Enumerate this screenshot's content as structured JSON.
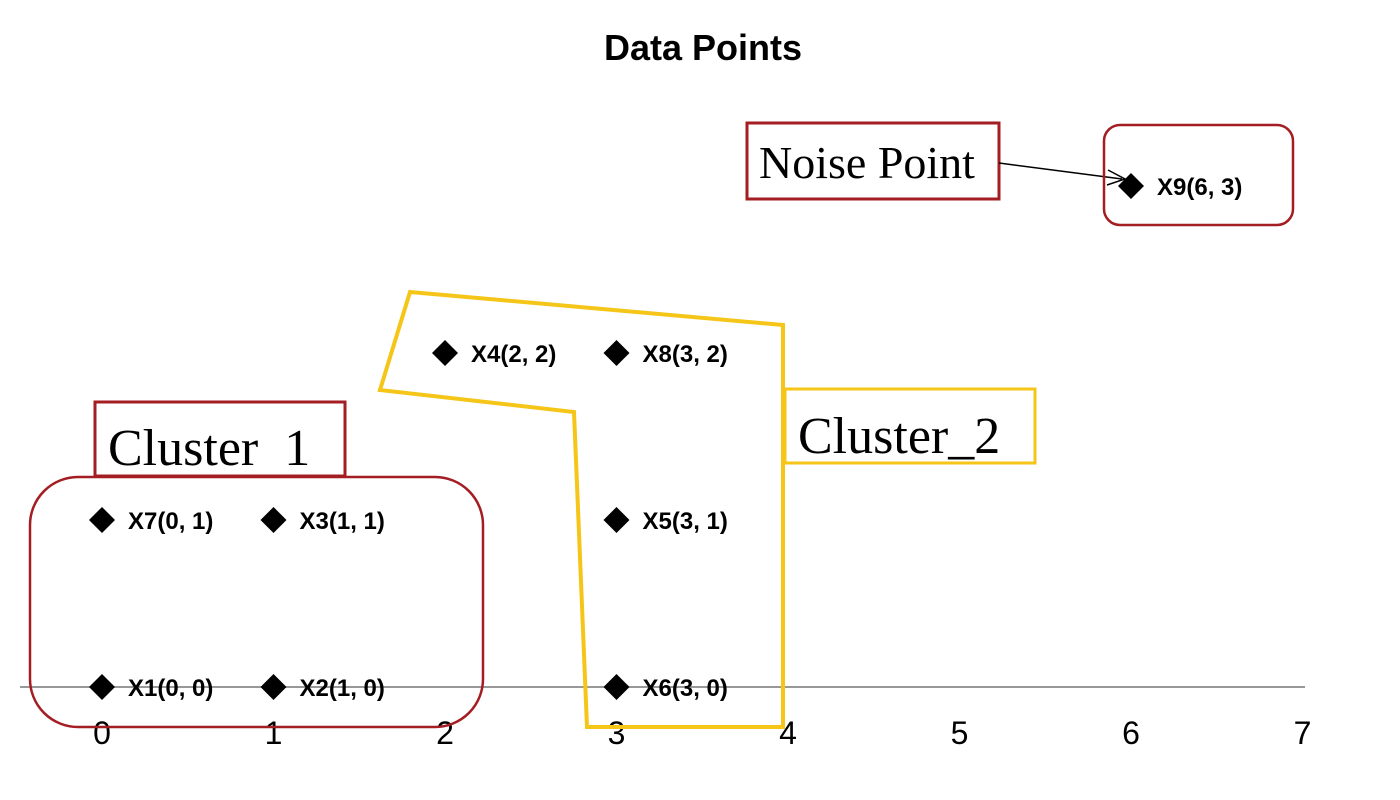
{
  "chart_data": {
    "type": "scatter",
    "title": "Data Points",
    "xlabel": "",
    "ylabel": "",
    "xlim": [
      0,
      7
    ],
    "ylim": [
      0,
      3
    ],
    "x_ticks": [
      "0",
      "1",
      "2",
      "3",
      "4",
      "5",
      "6",
      "7"
    ],
    "marker": "diamond",
    "points": [
      {
        "label": "X1(0, 0)",
        "x": 0,
        "y": 0
      },
      {
        "label": "X2(1, 0)",
        "x": 1,
        "y": 0
      },
      {
        "label": "X3(1, 1)",
        "x": 1,
        "y": 1
      },
      {
        "label": "X4(2, 2)",
        "x": 2,
        "y": 2
      },
      {
        "label": "X5(3, 1)",
        "x": 3,
        "y": 1
      },
      {
        "label": "X6(3, 0)",
        "x": 3,
        "y": 0
      },
      {
        "label": "X7(0, 1)",
        "x": 0,
        "y": 1
      },
      {
        "label": "X8(3, 2)",
        "x": 3,
        "y": 2
      },
      {
        "label": "X9(6, 3)",
        "x": 6,
        "y": 3
      }
    ],
    "annotations": {
      "cluster_1": "Cluster  1",
      "cluster_2": "Cluster_2",
      "noise": "Noise Point"
    },
    "colors": {
      "cluster_1": "#a31d22",
      "cluster_2": "#f5c518",
      "noise": "#a31d22",
      "marker": "#000000",
      "axis": "#777777"
    },
    "grid": false
  }
}
